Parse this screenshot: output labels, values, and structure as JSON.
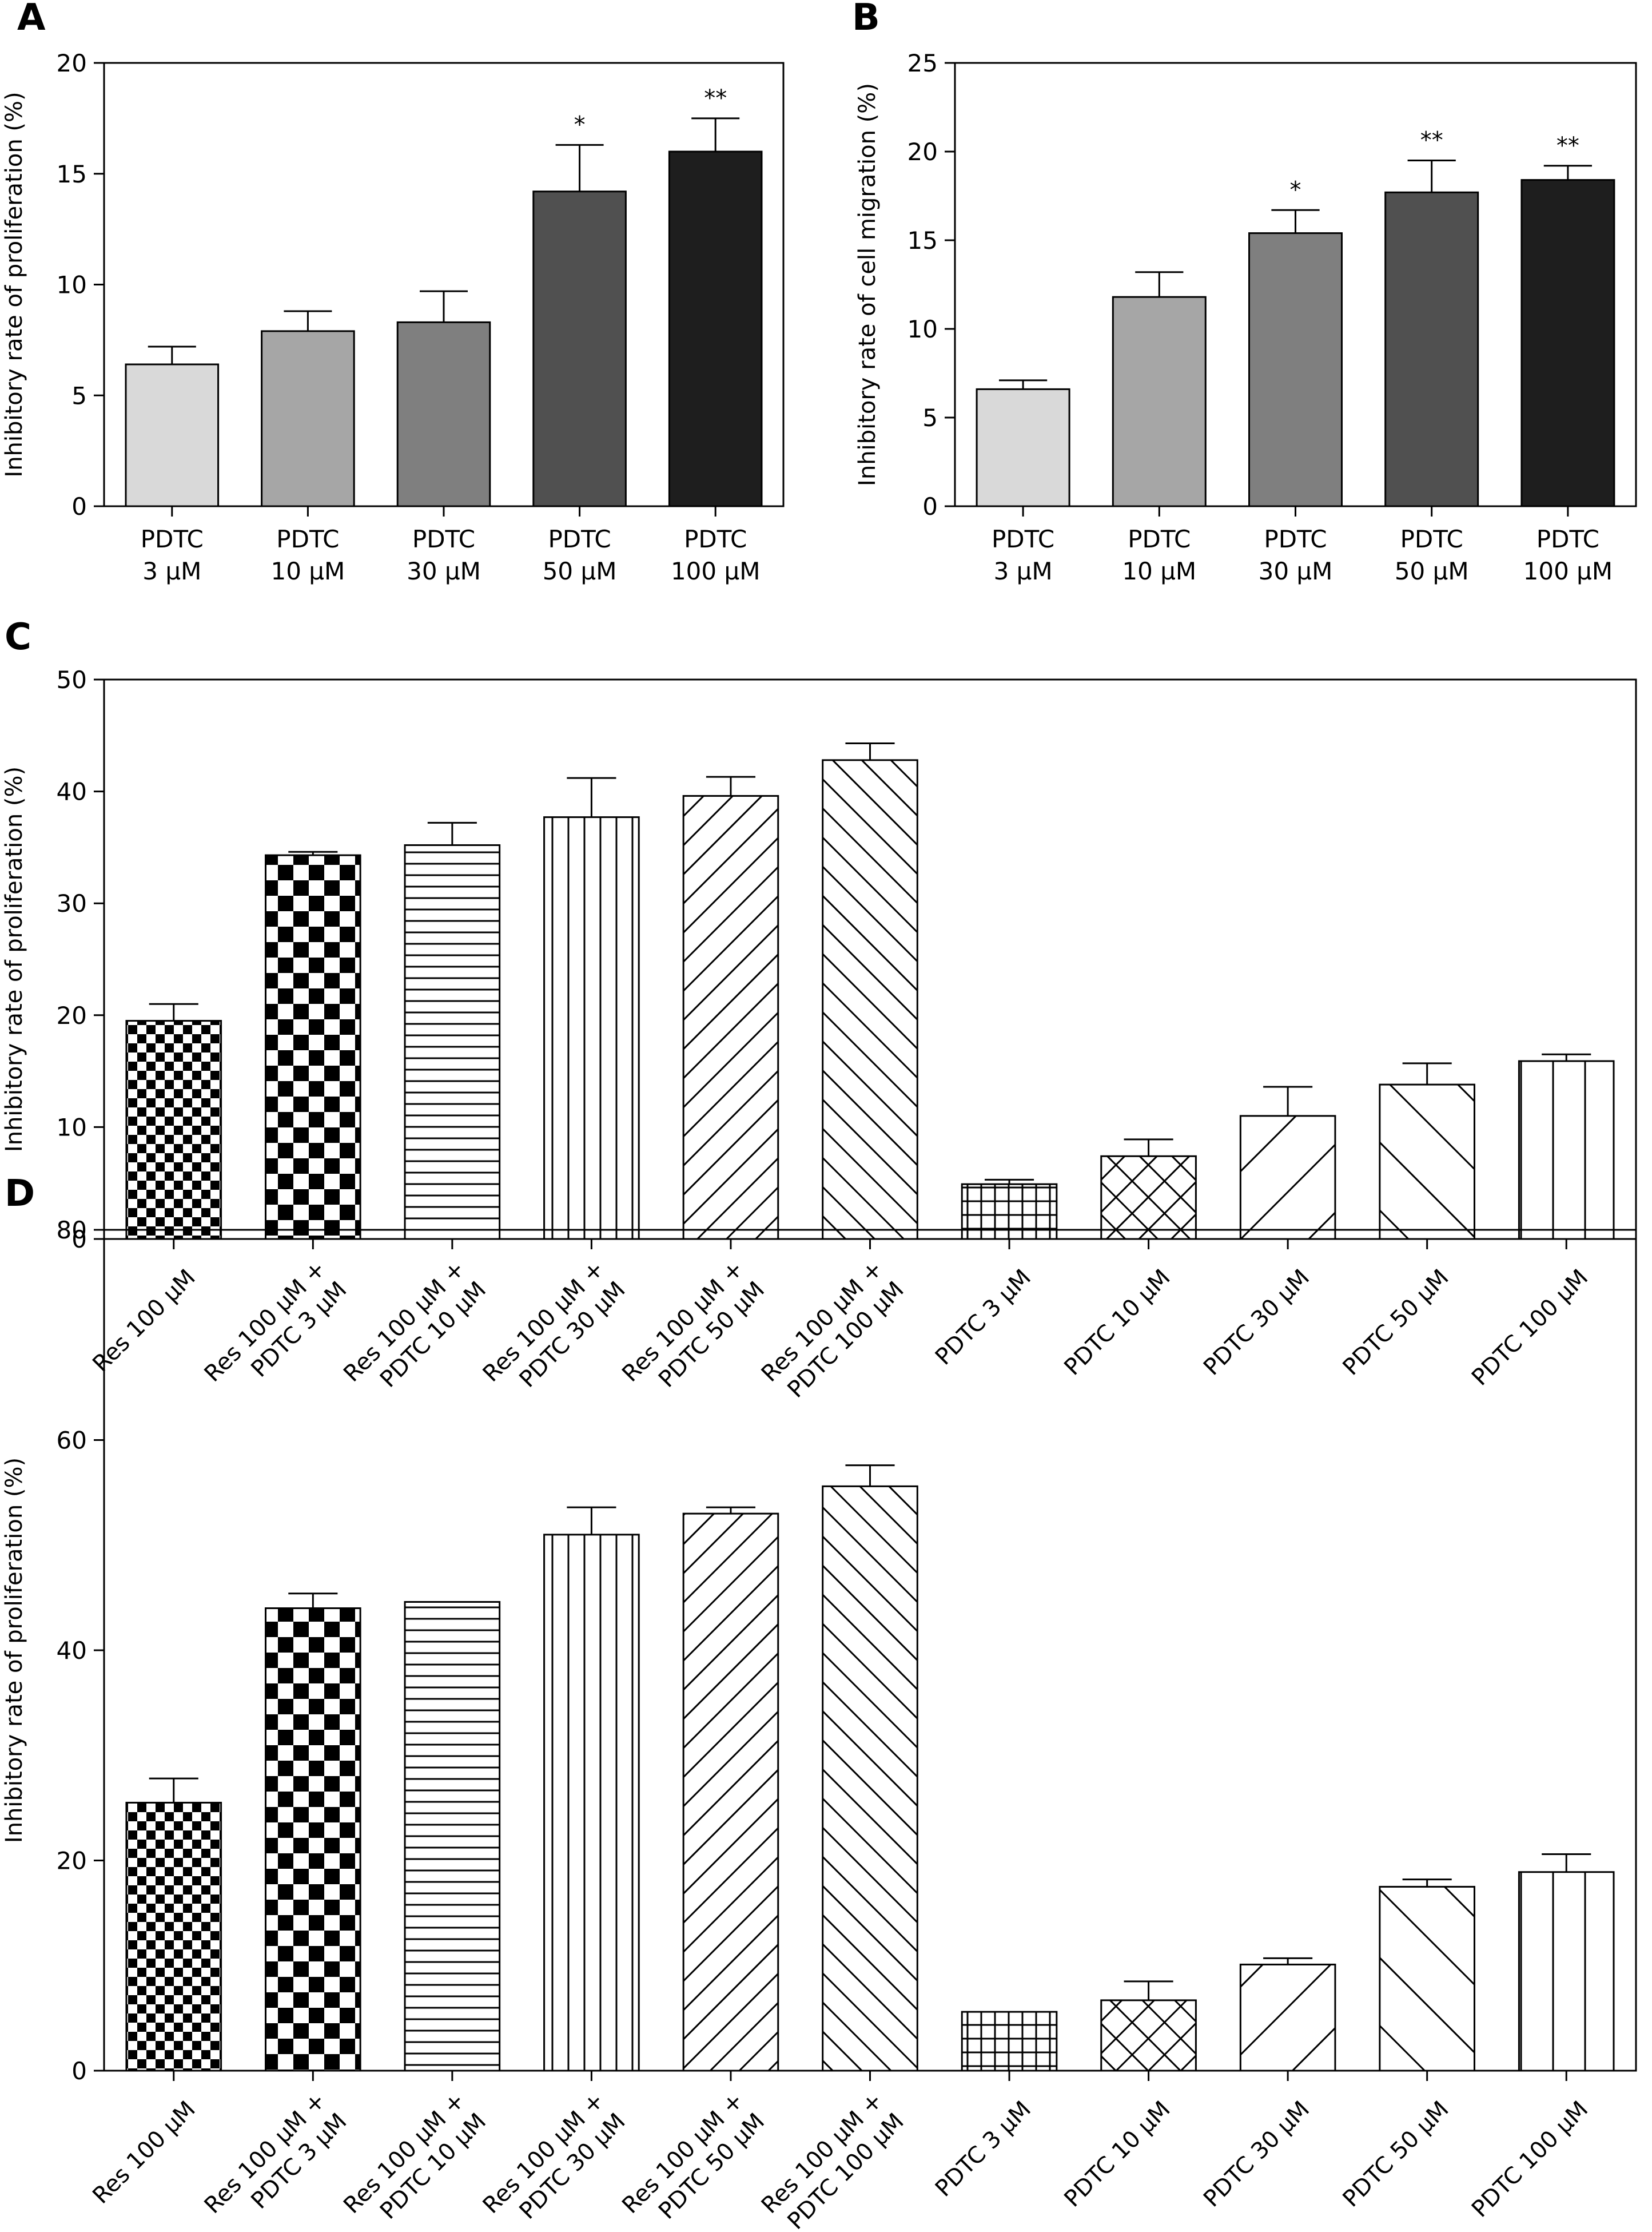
{
  "chart_data": [
    {
      "panel": "A",
      "type": "bar",
      "ylabel": "Inhibitory rate of proliferation (%)",
      "ylim": [
        0,
        20
      ],
      "yticks": [
        0,
        5,
        10,
        15,
        20
      ],
      "categories": [
        {
          "line1": "PDTC",
          "line2": "3 μM"
        },
        {
          "line1": "PDTC",
          "line2": "10 μM"
        },
        {
          "line1": "PDTC",
          "line2": "30 μM"
        },
        {
          "line1": "PDTC",
          "line2": "50 μM"
        },
        {
          "line1": "PDTC",
          "line2": "100 μM"
        }
      ],
      "values": [
        6.4,
        7.9,
        8.3,
        14.2,
        16.0
      ],
      "errors": [
        0.8,
        0.9,
        1.4,
        2.1,
        1.5
      ],
      "significance": [
        "",
        "",
        "",
        "*",
        "**"
      ],
      "fills": [
        "#d9d9d9",
        "#a6a6a6",
        "#7f7f7f",
        "#505050",
        "#1e1e1e"
      ]
    },
    {
      "panel": "B",
      "type": "bar",
      "ylabel": "Inhibitory rate of cell migration (%)",
      "ylim": [
        0,
        25
      ],
      "yticks": [
        0,
        5,
        10,
        15,
        20,
        25
      ],
      "categories": [
        {
          "line1": "PDTC",
          "line2": "3 μM"
        },
        {
          "line1": "PDTC",
          "line2": "10 μM"
        },
        {
          "line1": "PDTC",
          "line2": "30 μM"
        },
        {
          "line1": "PDTC",
          "line2": "50 μM"
        },
        {
          "line1": "PDTC",
          "line2": "100 μM"
        }
      ],
      "values": [
        6.6,
        11.8,
        15.4,
        17.7,
        18.4
      ],
      "errors": [
        0.5,
        1.4,
        1.3,
        1.8,
        0.8
      ],
      "significance": [
        "",
        "",
        "*",
        "**",
        "**"
      ],
      "fills": [
        "#d9d9d9",
        "#a6a6a6",
        "#7f7f7f",
        "#505050",
        "#1e1e1e"
      ]
    },
    {
      "panel": "C",
      "type": "bar",
      "ylabel": "Inhibitory rate of proliferation (%)",
      "ylim": [
        0,
        50
      ],
      "yticks": [
        0,
        10,
        20,
        30,
        40,
        50
      ],
      "categories": [
        {
          "line1": "Res 100 μM",
          "line2": ""
        },
        {
          "line1": "Res 100 μM +",
          "line2": "PDTC 3 μM"
        },
        {
          "line1": "Res 100 μM +",
          "line2": "PDTC 10 μM"
        },
        {
          "line1": "Res 100 μM +",
          "line2": "PDTC 30 μM"
        },
        {
          "line1": "Res 100 μM +",
          "line2": "PDTC 50 μM"
        },
        {
          "line1": "Res 100 μM +",
          "line2": "PDTC 100 μM"
        },
        {
          "line1": "PDTC 3 μM",
          "line2": ""
        },
        {
          "line1": "PDTC 10 μM",
          "line2": ""
        },
        {
          "line1": "PDTC 30 μM",
          "line2": ""
        },
        {
          "line1": "PDTC 50 μM",
          "line2": ""
        },
        {
          "line1": "PDTC 100 μM",
          "line2": ""
        }
      ],
      "values": [
        19.5,
        34.3,
        35.2,
        37.7,
        39.6,
        42.8,
        4.9,
        7.4,
        11.0,
        13.8,
        15.9
      ],
      "errors": [
        1.5,
        0.3,
        2.0,
        3.5,
        1.7,
        1.5,
        0.4,
        1.5,
        2.6,
        1.9,
        0.6
      ],
      "patterns": [
        "check-small",
        "check-large",
        "hlines",
        "vlines",
        "diag-up",
        "diag-down",
        "grid",
        "crosshatch",
        "diag-up-wide",
        "diag-down-wide",
        "vlines-wide"
      ]
    },
    {
      "panel": "D",
      "type": "bar",
      "ylabel": "Inhibitory rate of proliferation (%)",
      "ylim": [
        0,
        80
      ],
      "yticks": [
        0,
        20,
        40,
        60,
        80
      ],
      "categories": [
        {
          "line1": "Res 100 μM",
          "line2": ""
        },
        {
          "line1": "Res 100 μM +",
          "line2": "PDTC 3 μM"
        },
        {
          "line1": "Res 100 μM +",
          "line2": "PDTC 10 μM"
        },
        {
          "line1": "Res 100 μM +",
          "line2": "PDTC 30 μM"
        },
        {
          "line1": "Res 100 μM +",
          "line2": "PDTC 50 μM"
        },
        {
          "line1": "Res 100 μM +",
          "line2": "PDTC 100 μM"
        },
        {
          "line1": "PDTC 3 μM",
          "line2": ""
        },
        {
          "line1": "PDTC 10 μM",
          "line2": ""
        },
        {
          "line1": "PDTC 30 μM",
          "line2": ""
        },
        {
          "line1": "PDTC 50 μM",
          "line2": ""
        },
        {
          "line1": "PDTC 100 μM",
          "line2": ""
        }
      ],
      "values": [
        25.5,
        44.0,
        44.6,
        51.0,
        53.0,
        55.6,
        5.6,
        6.7,
        10.1,
        17.5,
        18.9
      ],
      "errors": [
        2.3,
        1.4,
        0.0,
        2.6,
        0.6,
        2.0,
        0.0,
        1.8,
        0.6,
        0.7,
        1.7
      ],
      "patterns": [
        "check-small",
        "check-large",
        "hlines",
        "vlines",
        "diag-up",
        "diag-down",
        "grid",
        "crosshatch",
        "diag-up-wide",
        "diag-down-wide",
        "vlines-wide"
      ]
    }
  ]
}
